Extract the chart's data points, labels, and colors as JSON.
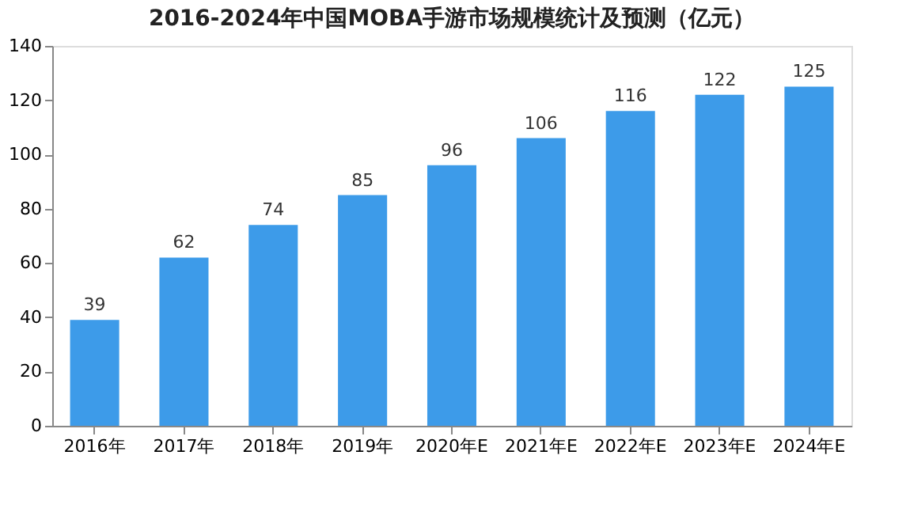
{
  "chart_data": {
    "type": "bar",
    "title": "2016-2024年中国MOBA手游市场规模统计及预测（亿元）",
    "categories": [
      "2016年",
      "2017年",
      "2018年",
      "2019年",
      "2020年E",
      "2021年E",
      "2022年E",
      "2023年E",
      "2024年E"
    ],
    "values": [
      39,
      62,
      74,
      85,
      96,
      106,
      116,
      122,
      125
    ],
    "color": "#3d9be9",
    "ylim": [
      0,
      140
    ],
    "yticks": [
      0,
      20,
      40,
      60,
      80,
      100,
      120,
      140
    ],
    "grid": false,
    "data_labels": true
  }
}
